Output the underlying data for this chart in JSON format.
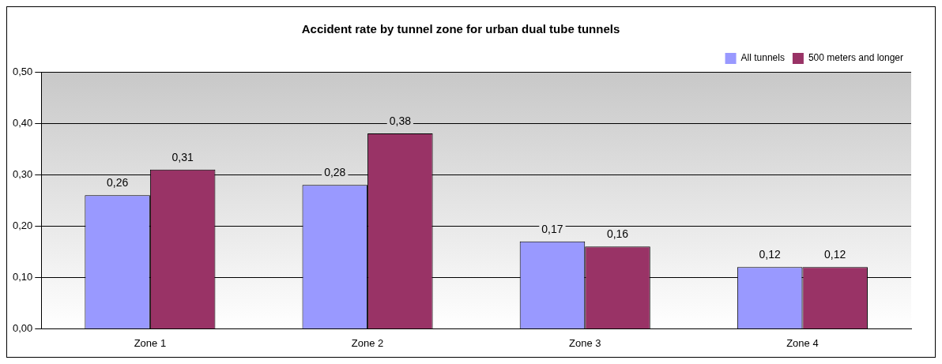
{
  "chart_data": {
    "type": "bar",
    "title": "Accident rate by tunnel zone for urban dual tube tunnels",
    "categories": [
      "Zone 1",
      "Zone 2",
      "Zone 3",
      "Zone 4"
    ],
    "series": [
      {
        "name": "All tunnels",
        "color": "#9999ff",
        "values": [
          0.26,
          0.28,
          0.17,
          0.12
        ],
        "value_labels": [
          "0,26",
          "0,28",
          "0,17",
          "0,12"
        ]
      },
      {
        "name": "500 meters and longer",
        "color": "#993366",
        "values": [
          0.31,
          0.38,
          0.16,
          0.12
        ],
        "value_labels": [
          "0,31",
          "0,38",
          "0,16",
          "0,12"
        ]
      }
    ],
    "ylim": [
      0,
      0.5
    ],
    "yticks": [
      {
        "value": 0,
        "label": "0,00"
      },
      {
        "value": 0.1,
        "label": "0,10"
      },
      {
        "value": 0.2,
        "label": "0,20"
      },
      {
        "value": 0.3,
        "label": "0,30"
      },
      {
        "value": 0.4,
        "label": "0,40"
      },
      {
        "value": 0.5,
        "label": "0,50"
      }
    ],
    "grid": "y",
    "legend": "top right"
  }
}
